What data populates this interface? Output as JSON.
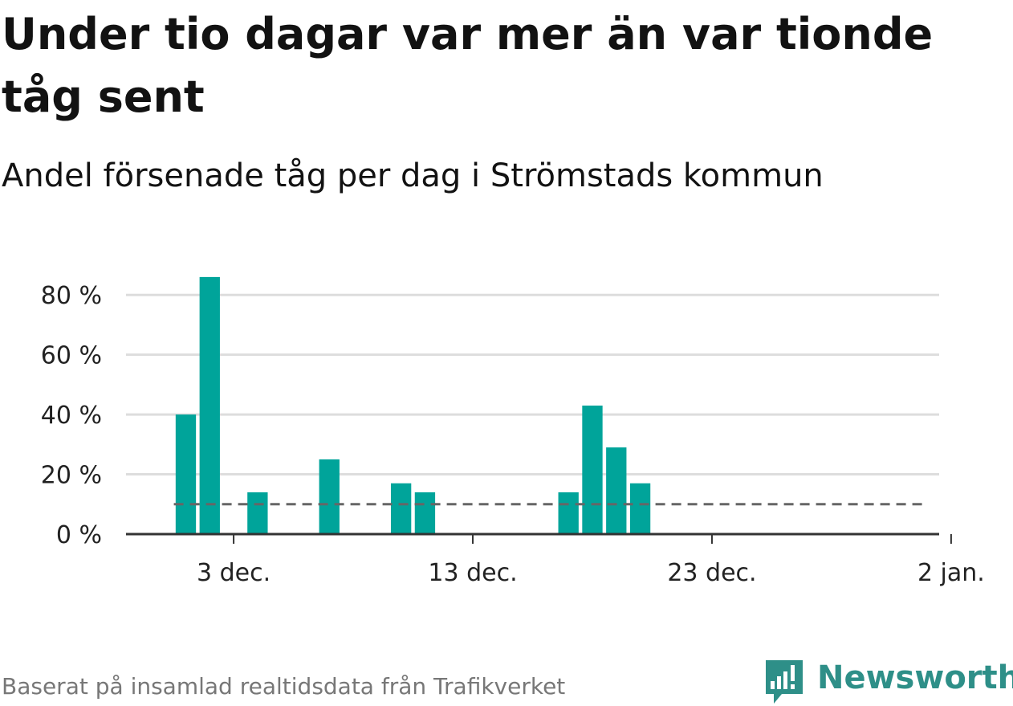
{
  "title": "Under tio dagar var mer än var tionde tåg sent",
  "subtitle": "Andel försenade tåg per dag i Strömstads kommun",
  "source": "Baserat på insamlad realtidsdata från Trafikverket",
  "brand": {
    "name": "Newsworthy",
    "color": "#2e8f88"
  },
  "colors": {
    "bar": "#00a49a",
    "grid": "#dddddd",
    "axis": "#333333",
    "reference": "#666666"
  },
  "chart_data": {
    "type": "bar",
    "title": "Under tio dagar var mer än var tionde tåg sent",
    "subtitle": "Andel försenade tåg per dag i Strömstads kommun",
    "xlabel": "",
    "ylabel": "",
    "ylim": [
      0,
      90
    ],
    "yticks": [
      0,
      20,
      40,
      60,
      80
    ],
    "ytick_labels": [
      "0 %",
      "20 %",
      "40 %",
      "60 %",
      "80 %"
    ],
    "x_domain": [
      "2023-11-29",
      "2024-01-02"
    ],
    "xticks": [
      {
        "date": "2023-12-03",
        "label": "3 dec."
      },
      {
        "date": "2023-12-13",
        "label": "13 dec."
      },
      {
        "date": "2023-12-23",
        "label": "23 dec."
      },
      {
        "date": "2024-01-02",
        "label": "2 jan."
      }
    ],
    "grid": true,
    "bars": [
      {
        "date": "2023-12-01",
        "value": 40
      },
      {
        "date": "2023-12-02",
        "value": 86
      },
      {
        "date": "2023-12-04",
        "value": 14
      },
      {
        "date": "2023-12-07",
        "value": 25
      },
      {
        "date": "2023-12-10",
        "value": 17
      },
      {
        "date": "2023-12-11",
        "value": 14
      },
      {
        "date": "2023-12-17",
        "value": 14
      },
      {
        "date": "2023-12-18",
        "value": 43
      },
      {
        "date": "2023-12-19",
        "value": 29
      },
      {
        "date": "2023-12-20",
        "value": 17
      }
    ],
    "reference_line": {
      "value": 10,
      "style": "dashed",
      "from": "2023-12-01",
      "to": "2024-01-01"
    }
  }
}
